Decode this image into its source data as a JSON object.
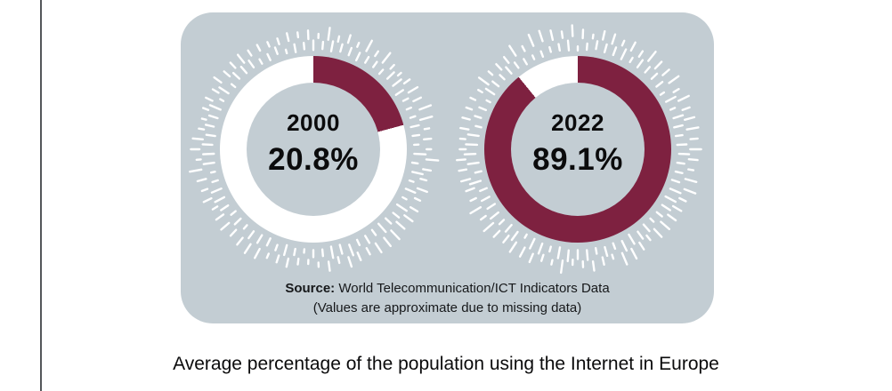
{
  "chart_data": {
    "type": "donut",
    "title": "Average percentage of the population using the Internet in Europe",
    "series": [
      {
        "label": "2000",
        "value": 20.8,
        "display": "20.8%"
      },
      {
        "label": "2022",
        "value": 89.1,
        "display": "89.1%"
      }
    ],
    "value_range": [
      0,
      100
    ],
    "unit": "%",
    "layout": {
      "start_angle_deg": 0,
      "direction": "clockwise",
      "legend": "none"
    },
    "colors": {
      "fill": "#7E2140",
      "track": "#FFFFFF",
      "card_background": "#C3CDD3",
      "tick": "#FFFFFF",
      "text": "#0B0B0C"
    },
    "source_label": "Source:",
    "source_text": "World Telecommunication/ICT Indicators Data",
    "note": "(Values are approximate due to missing data)"
  }
}
